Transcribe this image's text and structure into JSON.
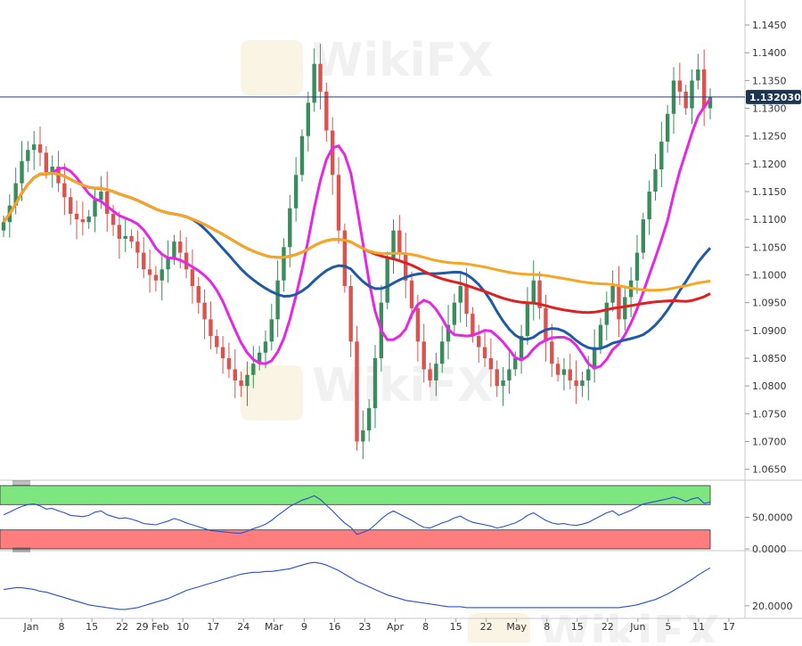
{
  "chart_data": {
    "type": "candlestick",
    "title": "",
    "instrument_price_label": "1.132030",
    "x_ticks": [
      "Jan",
      "8",
      "15",
      "22",
      "29 Feb",
      "10",
      "17",
      "24",
      "Mar",
      "9",
      "16",
      "23",
      "Apr",
      "8",
      "15",
      "22",
      "May",
      "8",
      "15",
      "22",
      "Jun",
      "5",
      "11",
      "17"
    ],
    "y_ticks": [
      "1.1450",
      "1.1400",
      "1.1350",
      "1.1300",
      "1.1250",
      "1.1200",
      "1.1150",
      "1.1100",
      "1.1050",
      "1.1000",
      "1.0950",
      "1.0900",
      "1.0850",
      "1.0800",
      "1.0750",
      "1.0700",
      "1.0650"
    ],
    "ylim": [
      1.0635,
      1.1495
    ],
    "current_price": 1.13203,
    "watermark": "WikiFX",
    "candle_close": [
      1.1095,
      1.1125,
      1.1165,
      1.1205,
      1.1225,
      1.1235,
      1.122,
      1.1185,
      1.1195,
      1.1165,
      1.114,
      1.111,
      1.11,
      1.1095,
      1.1105,
      1.1135,
      1.115,
      1.111,
      1.109,
      1.1065,
      1.107,
      1.106,
      1.104,
      1.101,
      1.1,
      1.099,
      1.101,
      1.103,
      1.106,
      1.104,
      1.101,
      1.098,
      1.095,
      1.092,
      1.089,
      1.087,
      1.085,
      1.083,
      1.081,
      1.08,
      1.082,
      1.084,
      1.086,
      1.088,
      1.092,
      1.099,
      1.105,
      1.112,
      1.118,
      1.125,
      1.131,
      1.138,
      1.133,
      1.126,
      1.118,
      1.108,
      1.098,
      1.088,
      1.07,
      1.072,
      1.076,
      1.085,
      1.095,
      1.103,
      1.108,
      1.104,
      1.099,
      1.094,
      1.088,
      1.083,
      1.081,
      1.084,
      1.088,
      1.091,
      1.095,
      1.098,
      1.093,
      1.089,
      1.087,
      1.085,
      1.083,
      1.08,
      1.081,
      1.083,
      1.085,
      1.089,
      1.095,
      1.099,
      1.094,
      1.088,
      1.084,
      1.082,
      1.083,
      1.081,
      1.08,
      1.081,
      1.083,
      1.087,
      1.091,
      1.095,
      1.098,
      1.092,
      1.096,
      1.099,
      1.104,
      1.11,
      1.115,
      1.119,
      1.124,
      1.129,
      1.135,
      1.133,
      1.13,
      1.135,
      1.137,
      1.13,
      1.132
    ],
    "rsi_values": [
      54,
      58,
      63,
      67,
      70,
      71,
      68,
      63,
      64,
      60,
      57,
      53,
      52,
      51,
      53,
      58,
      60,
      54,
      51,
      48,
      49,
      47,
      44,
      40,
      39,
      38,
      41,
      44,
      48,
      45,
      41,
      38,
      35,
      32,
      29,
      28,
      27,
      26,
      25,
      25,
      28,
      32,
      35,
      39,
      45,
      53,
      60,
      67,
      72,
      77,
      80,
      84,
      78,
      69,
      60,
      50,
      41,
      34,
      23,
      26,
      30,
      38,
      47,
      55,
      60,
      55,
      50,
      45,
      39,
      34,
      33,
      37,
      41,
      44,
      49,
      52,
      46,
      42,
      40,
      38,
      36,
      33,
      35,
      38,
      41,
      46,
      53,
      57,
      51,
      45,
      41,
      39,
      40,
      38,
      37,
      39,
      42,
      47,
      52,
      57,
      60,
      53,
      57,
      61,
      66,
      71,
      73,
      75,
      77,
      79,
      82,
      79,
      75,
      79,
      81,
      72,
      74
    ],
    "rsi_ylim": [
      0,
      100
    ],
    "rsi_ticks": [
      "50.0000",
      "0.0000"
    ],
    "adx_values": [
      38,
      39,
      40,
      40,
      39,
      38,
      36,
      35,
      33,
      31,
      29,
      27,
      25,
      23,
      21,
      20,
      19,
      18,
      17,
      16,
      16,
      17,
      18,
      20,
      22,
      24,
      26,
      28,
      31,
      34,
      37,
      39,
      41,
      43,
      45,
      47,
      49,
      51,
      53,
      55,
      56,
      57,
      57,
      58,
      58,
      59,
      60,
      61,
      63,
      65,
      67,
      68,
      67,
      65,
      62,
      59,
      55,
      51,
      47,
      44,
      41,
      38,
      35,
      32,
      30,
      28,
      26,
      25,
      24,
      23,
      22,
      21,
      20,
      19,
      19,
      19,
      18,
      18,
      18,
      18,
      18,
      18,
      18,
      18,
      18,
      18,
      18,
      18,
      18,
      18,
      18,
      18,
      18,
      18,
      18,
      18,
      18,
      18,
      18,
      18,
      18,
      18,
      19,
      20,
      21,
      23,
      25,
      27,
      30,
      33,
      37,
      41,
      45,
      49,
      54,
      58,
      62
    ],
    "adx_ylim": [
      10,
      80
    ],
    "adx_ticks": [
      "20.0000"
    ],
    "colors": {
      "up": "#3a8c5c",
      "down": "#d9534f",
      "ma_magenta": "#e626e6",
      "ma_blue": "#1f5aa8",
      "ma_red": "#e02020",
      "ma_orange": "#f5a623",
      "rsi_line": "#2a4fd1",
      "adx_line": "#2a4fd1",
      "rsi_overbought": "#7ee67e",
      "rsi_oversold": "#ff7d7d",
      "price_line": "#2c3e70",
      "price_label_bg": "#1c3553"
    }
  }
}
